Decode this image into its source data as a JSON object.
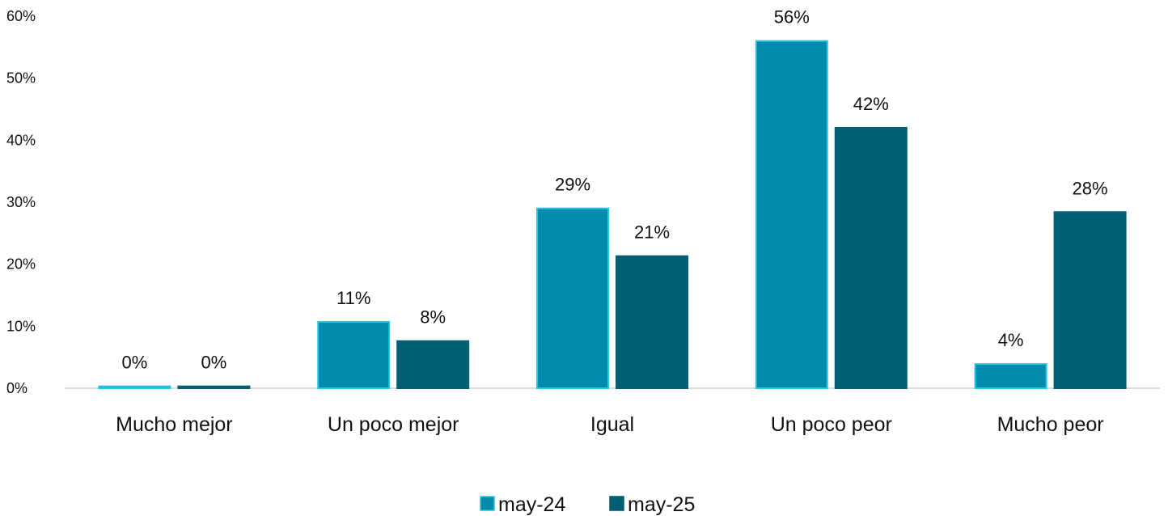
{
  "chart_data": {
    "type": "bar",
    "title": "",
    "xlabel": "",
    "ylabel": "",
    "ylim": [
      0,
      60
    ],
    "yticks": [
      0,
      10,
      20,
      30,
      40,
      50,
      60
    ],
    "ytick_labels": [
      "0%",
      "10%",
      "20%",
      "30%",
      "40%",
      "50%",
      "60%"
    ],
    "grid": false,
    "legend_position": "bottom",
    "categories": [
      "Mucho mejor",
      "Un poco mejor",
      "Igual",
      "Un poco peor",
      "Mucho peor"
    ],
    "series": [
      {
        "name": "may-24",
        "color": "#008BAE",
        "border_color": "#29C4E6",
        "values": [
          0.3,
          10.7,
          29,
          56,
          3.9
        ],
        "labels": [
          "0%",
          "11%",
          "29%",
          "56%",
          "4%"
        ]
      },
      {
        "name": "may-25",
        "color": "#005F73",
        "border_color": "#005F73",
        "values": [
          0.3,
          7.6,
          21.3,
          42,
          28.4
        ],
        "labels": [
          "0%",
          "8%",
          "21%",
          "42%",
          "28%"
        ]
      }
    ]
  }
}
